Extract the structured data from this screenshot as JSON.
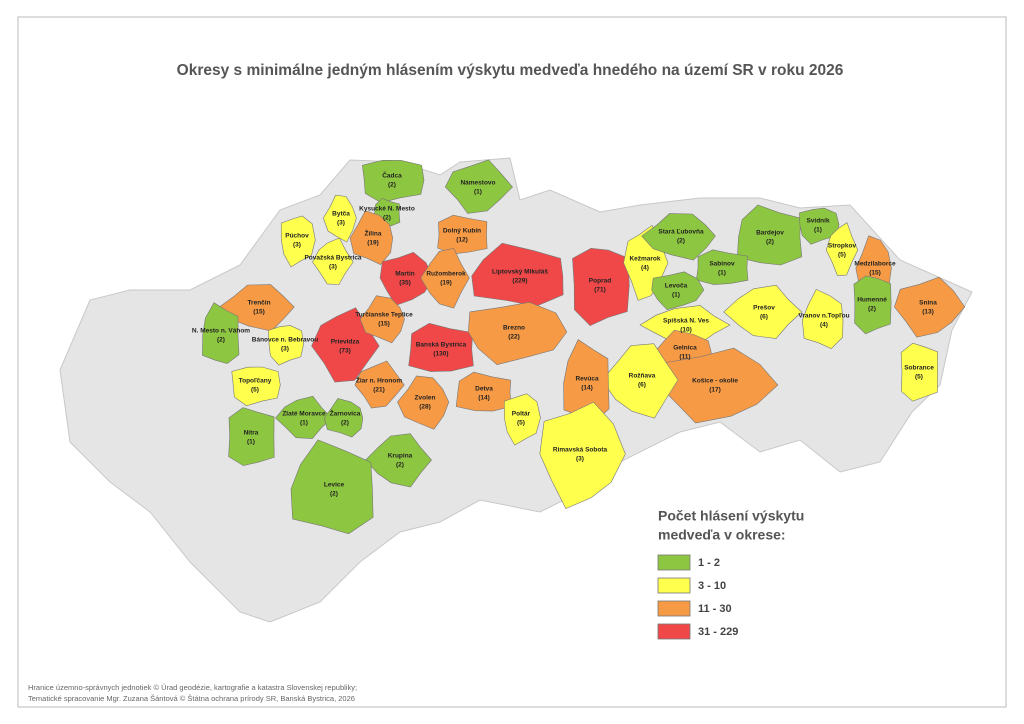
{
  "title": "Okresy s minimálne jedným hlásením výskytu medveďa hnedého na území SR v roku 2026",
  "districts": [
    {
      "name": "Čadca",
      "count": "(2)",
      "color": "#8dc640"
    },
    {
      "name": "Námestovo",
      "count": "(1)",
      "color": "#8dc640"
    },
    {
      "name": "Bytča",
      "count": "(3)",
      "color": "#ffff4d"
    },
    {
      "name": "Kysucké N. Mesto",
      "count": "(2)",
      "color": "#8dc640"
    },
    {
      "name": "Púchov",
      "count": "(3)",
      "color": "#ffff4d"
    },
    {
      "name": "Považská Bystrica",
      "count": "(3)",
      "color": "#ffff4d"
    },
    {
      "name": "Žilina",
      "count": "(19)",
      "color": "#f79a45"
    },
    {
      "name": "Dolný Kubín",
      "count": "(12)",
      "color": "#f79a45"
    },
    {
      "name": "Martin",
      "count": "(35)",
      "color": "#f04848"
    },
    {
      "name": "Ružomberok",
      "count": "(19)",
      "color": "#f79a45"
    },
    {
      "name": "Liptovský Mikuláš",
      "count": "(229)",
      "color": "#f04848"
    },
    {
      "name": "Poprad",
      "count": "(71)",
      "color": "#f04848"
    },
    {
      "name": "Kežmarok",
      "count": "(4)",
      "color": "#ffff4d"
    },
    {
      "name": "Stará Ľubovňa",
      "count": "(2)",
      "color": "#8dc640"
    },
    {
      "name": "Bardejov",
      "count": "(2)",
      "color": "#8dc640"
    },
    {
      "name": "Svidník",
      "count": "(1)",
      "color": "#8dc640"
    },
    {
      "name": "Stropkov",
      "count": "(5)",
      "color": "#ffff4d"
    },
    {
      "name": "Medzilaborce",
      "count": "(15)",
      "color": "#f79a45"
    },
    {
      "name": "Sabinov",
      "count": "(1)",
      "color": "#8dc640"
    },
    {
      "name": "Levoča",
      "count": "(1)",
      "color": "#8dc640"
    },
    {
      "name": "Prešov",
      "count": "(6)",
      "color": "#ffff4d"
    },
    {
      "name": "Vranov n.Topľou",
      "count": "(4)",
      "color": "#ffff4d"
    },
    {
      "name": "Humenné",
      "count": "(2)",
      "color": "#8dc640"
    },
    {
      "name": "Snina",
      "count": "(13)",
      "color": "#f79a45"
    },
    {
      "name": "Trenčín",
      "count": "(15)",
      "color": "#f79a45"
    },
    {
      "name": "N. Mesto n. Váhom",
      "count": "(2)",
      "color": "#8dc640"
    },
    {
      "name": "Bánovce n. Bebravou",
      "count": "(3)",
      "color": "#ffff4d"
    },
    {
      "name": "Prievidza",
      "count": "(73)",
      "color": "#f04848"
    },
    {
      "name": "Turčianske Teplice",
      "count": "(15)",
      "color": "#f79a45"
    },
    {
      "name": "Banská Bystrica",
      "count": "(130)",
      "color": "#f04848"
    },
    {
      "name": "Brezno",
      "count": "(22)",
      "color": "#f79a45"
    },
    {
      "name": "Spišská N. Ves",
      "count": "(10)",
      "color": "#ffff4d"
    },
    {
      "name": "Gelnica",
      "count": "(11)",
      "color": "#f79a45"
    },
    {
      "name": "Sobrance",
      "count": "(5)",
      "color": "#ffff4d"
    },
    {
      "name": "Košice - okolie",
      "count": "(17)",
      "color": "#f79a45"
    },
    {
      "name": "Rožňava",
      "count": "(6)",
      "color": "#ffff4d"
    },
    {
      "name": "Revúca",
      "count": "(14)",
      "color": "#f79a45"
    },
    {
      "name": "Topoľčany",
      "count": "(5)",
      "color": "#ffff4d"
    },
    {
      "name": "Žiar n. Hronom",
      "count": "(21)",
      "color": "#f79a45"
    },
    {
      "name": "Zvolen",
      "count": "(28)",
      "color": "#f79a45"
    },
    {
      "name": "Detva",
      "count": "(14)",
      "color": "#f79a45"
    },
    {
      "name": "Poltár",
      "count": "(5)",
      "color": "#ffff4d"
    },
    {
      "name": "Zlaté Moravce",
      "count": "(1)",
      "color": "#8dc640"
    },
    {
      "name": "Žarnovica",
      "count": "(2)",
      "color": "#8dc640"
    },
    {
      "name": "Nitra",
      "count": "(1)",
      "color": "#8dc640"
    },
    {
      "name": "Rimavská Sobota",
      "count": "(3)",
      "color": "#ffff4d"
    },
    {
      "name": "Krupina",
      "count": "(2)",
      "color": "#8dc640"
    },
    {
      "name": "Levice",
      "count": "(2)",
      "color": "#8dc640"
    }
  ],
  "legend": {
    "title_lines": [
      "Počet hlásení výskytu",
      "medveďa v okrese:"
    ],
    "items": [
      {
        "label": "1 - 2",
        "color": "#8dc640"
      },
      {
        "label": "3 - 10",
        "color": "#ffff4d"
      },
      {
        "label": "11 - 30",
        "color": "#f79a45"
      },
      {
        "label": "31 - 229",
        "color": "#f04848"
      }
    ]
  },
  "footer": [
    "Hranice územno-správnych jednotiek © Úrad geodézie, kartografie a katastra Slovenskej republiky;",
    "Tematické spracovanie Mgr. Zuzana Šántová © Štátna ochrana prírody SR, Banská Bystrica, 2026"
  ]
}
